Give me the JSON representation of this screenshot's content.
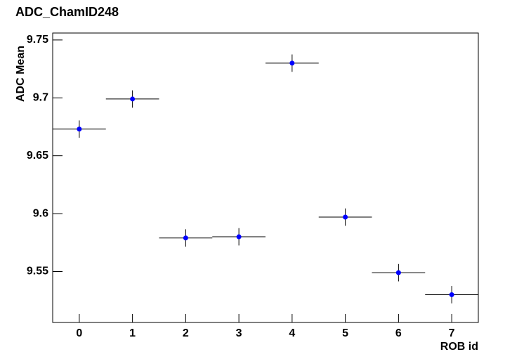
{
  "chart_data": {
    "type": "scatter",
    "title": "ADC_ChamID248",
    "x_label": "ROB id",
    "y_label": "ADC Mean",
    "x": [
      0,
      1,
      2,
      3,
      4,
      5,
      6,
      7
    ],
    "values": [
      9.673,
      9.699,
      9.579,
      9.58,
      9.73,
      9.597,
      9.549,
      9.53
    ],
    "yerr": [
      0.0075,
      0.0075,
      0.0075,
      0.0075,
      0.0075,
      0.0075,
      0.0075,
      0.0075
    ],
    "xerr": [
      0.5,
      0.5,
      0.5,
      0.5,
      0.5,
      0.5,
      0.5,
      0.5
    ],
    "color": "#0000ff",
    "xlim": [
      -0.5,
      7.5
    ],
    "xticks": [
      0,
      1,
      2,
      3,
      4,
      5,
      6,
      7
    ],
    "ylim": [
      9.506,
      9.756
    ],
    "yticks": [
      9.55,
      9.6,
      9.65,
      9.7,
      9.75
    ]
  }
}
